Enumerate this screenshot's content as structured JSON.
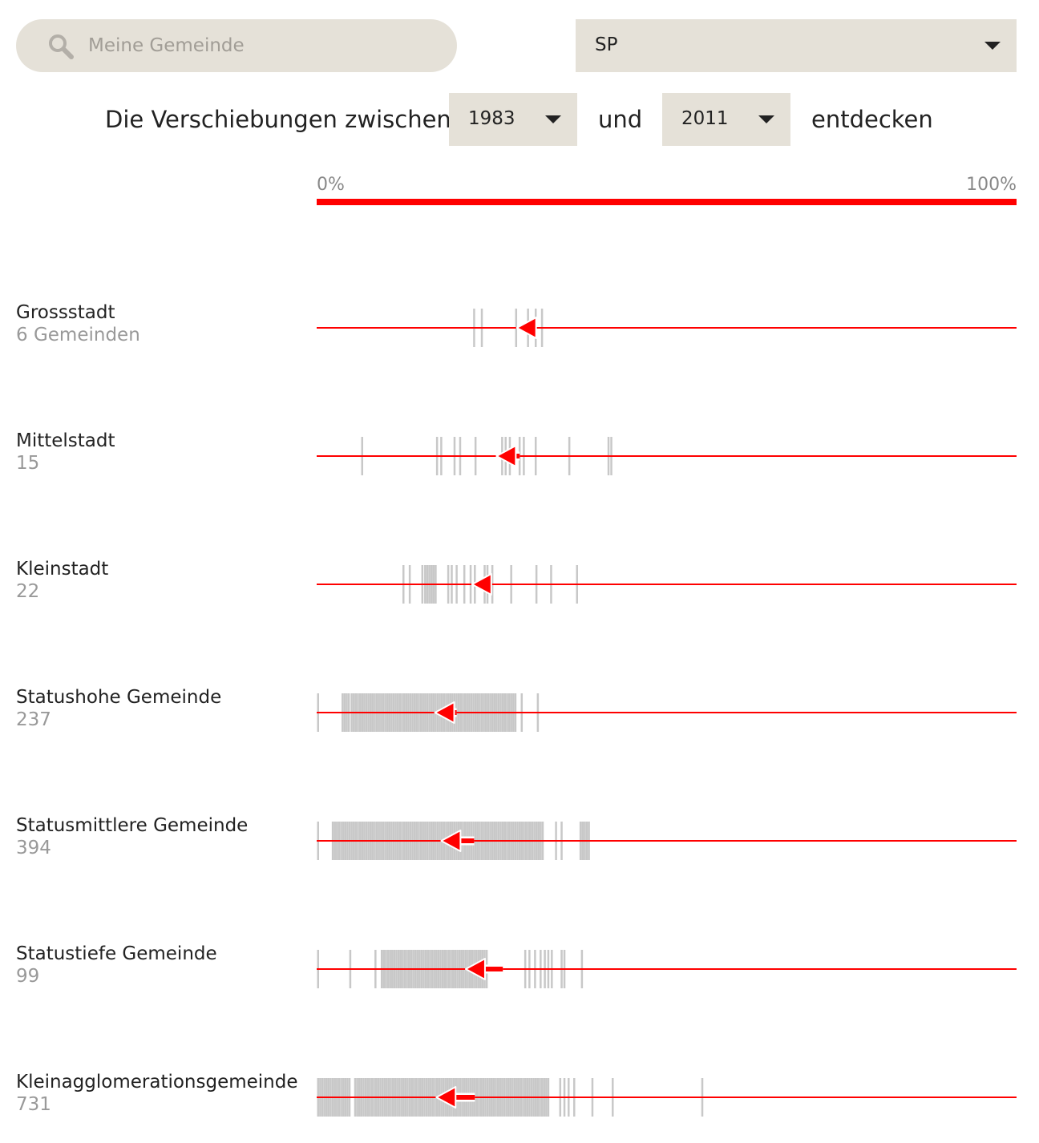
{
  "search": {
    "placeholder": "Meine Gemeinde",
    "icon": "search-icon"
  },
  "party_select": {
    "value": "SP",
    "icon": "chevron-down-icon"
  },
  "sentence": {
    "prefix": "Die Verschiebungen zwischen",
    "year_from": "1983",
    "middle": "und",
    "year_to": "2011",
    "suffix": "entdecken"
  },
  "scale": {
    "min_label": "0%",
    "max_label": "100%",
    "color": "#ff0000"
  },
  "colors": {
    "accent": "#ff0000",
    "tick": "#c8c8c8",
    "control_bg": "#e5e1d8"
  },
  "chart_data": {
    "type": "strip",
    "x_range": [
      0,
      100
    ],
    "unit": "%",
    "rows": [
      {
        "title": "Grossstadt",
        "count_label": "6 Gemeinden",
        "from": 30.6,
        "to": 28.6,
        "values": [
          22.5,
          23.6,
          28.5,
          30.2,
          31.3,
          32.2
        ]
      },
      {
        "title": "Mittelstadt",
        "count_label": "15",
        "from": 29.0,
        "to": 25.7,
        "values": [
          6.5,
          17.2,
          17.8,
          19.7,
          20.5,
          22.7,
          26.5,
          27.0,
          27.6,
          29.0,
          29.6,
          31.3,
          36.1,
          41.7,
          42.1
        ]
      },
      {
        "title": "Kleinstadt",
        "count_label": "22",
        "from": 24.8,
        "to": 22.2,
        "values": [
          12.4,
          13.3,
          15.1,
          15.5,
          15.8,
          16.1,
          16.4,
          16.7,
          17.0,
          18.8,
          19.3,
          20.0,
          21.1,
          22.0,
          22.6,
          24.0,
          24.4,
          25.1,
          27.8,
          31.4,
          33.5,
          37.2
        ]
      },
      {
        "title": "Statushohe Gemeinde",
        "count_label": "237",
        "from": 20.0,
        "to": 16.9,
        "values": [
          0.2,
          3.7,
          4.0,
          4.3,
          4.6,
          5.0,
          5.3,
          5.6,
          5.9,
          6.2,
          6.5,
          6.8,
          7.1,
          7.4,
          7.7,
          8.0,
          8.3,
          8.6,
          8.9,
          9.2,
          9.5,
          9.8,
          10.1,
          10.4,
          10.7,
          11.0,
          11.3,
          11.6,
          11.9,
          12.2,
          12.5,
          12.8,
          13.1,
          13.4,
          13.7,
          14.0,
          14.3,
          14.6,
          14.9,
          15.2,
          15.5,
          15.8,
          16.1,
          16.4,
          16.7,
          17.0,
          17.3,
          17.6,
          17.9,
          18.2,
          18.5,
          18.8,
          19.1,
          19.4,
          19.7,
          20.0,
          20.3,
          20.6,
          20.9,
          21.2,
          21.5,
          21.8,
          22.1,
          22.4,
          22.7,
          23.0,
          23.3,
          23.6,
          23.9,
          24.2,
          24.5,
          24.8,
          25.1,
          25.4,
          25.7,
          26.0,
          26.3,
          26.6,
          26.9,
          27.2,
          27.5,
          27.8,
          28.1,
          28.4,
          29.3,
          31.6
        ]
      },
      {
        "title": "Statusmittlere Gemeinde",
        "count_label": "394",
        "from": 22.5,
        "to": 17.8,
        "values": [
          0.2,
          2.3,
          2.6,
          2.9,
          3.2,
          3.5,
          3.8,
          4.1,
          4.4,
          4.7,
          5.0,
          5.3,
          5.6,
          5.9,
          6.2,
          6.5,
          6.8,
          7.1,
          7.4,
          7.7,
          8.0,
          8.3,
          8.6,
          8.9,
          9.2,
          9.5,
          9.8,
          10.1,
          10.4,
          10.7,
          11.0,
          11.3,
          11.6,
          11.9,
          12.2,
          12.5,
          12.8,
          13.1,
          13.4,
          13.7,
          14.0,
          14.3,
          14.6,
          14.9,
          15.2,
          15.5,
          15.8,
          16.1,
          16.4,
          16.7,
          17.0,
          17.3,
          17.6,
          17.9,
          18.2,
          18.5,
          18.8,
          19.1,
          19.4,
          19.7,
          20.0,
          20.3,
          20.6,
          20.9,
          21.2,
          21.5,
          21.8,
          22.1,
          22.4,
          22.7,
          23.0,
          23.3,
          23.6,
          23.9,
          24.2,
          24.5,
          24.8,
          25.1,
          25.4,
          25.7,
          26.0,
          26.3,
          26.6,
          26.9,
          27.2,
          27.5,
          27.8,
          28.1,
          28.4,
          28.7,
          29.0,
          29.3,
          29.6,
          29.9,
          30.2,
          30.5,
          30.8,
          31.1,
          31.4,
          31.7,
          32.0,
          32.3,
          34.2,
          35.0,
          37.7,
          38.0,
          38.3,
          38.6,
          38.9
        ]
      },
      {
        "title": "Statustiefe Gemeinde",
        "count_label": "99",
        "from": 26.6,
        "to": 21.3,
        "values": [
          0.2,
          4.8,
          8.4,
          9.3,
          9.6,
          9.9,
          10.2,
          10.5,
          10.8,
          11.1,
          11.4,
          11.7,
          12.0,
          12.3,
          12.6,
          12.9,
          13.2,
          13.5,
          13.8,
          14.1,
          14.4,
          14.7,
          15.0,
          15.3,
          15.6,
          15.9,
          16.2,
          16.5,
          16.8,
          17.1,
          17.4,
          17.7,
          18.0,
          18.3,
          18.6,
          18.9,
          19.2,
          19.5,
          19.8,
          20.1,
          20.4,
          20.7,
          21.0,
          21.3,
          21.6,
          21.9,
          22.2,
          22.5,
          22.8,
          23.1,
          23.4,
          23.7,
          24.0,
          24.3,
          29.8,
          30.4,
          31.2,
          32.0,
          32.6,
          33.1,
          33.6,
          35.0,
          35.4,
          37.9
        ]
      },
      {
        "title": "Kleinagglomerationsgemeinde",
        "count_label": "731",
        "from": 22.6,
        "to": 17.1,
        "values": [
          0.2,
          0.5,
          0.8,
          1.1,
          1.4,
          1.7,
          2.0,
          2.3,
          2.6,
          2.9,
          3.2,
          3.5,
          3.8,
          4.1,
          4.4,
          4.7,
          5.5,
          5.8,
          6.1,
          6.4,
          6.7,
          7.0,
          7.3,
          7.6,
          7.9,
          8.2,
          8.5,
          8.8,
          9.1,
          9.4,
          9.7,
          10.0,
          10.3,
          10.6,
          10.9,
          11.2,
          11.5,
          11.8,
          12.1,
          12.4,
          12.7,
          13.0,
          13.3,
          13.6,
          13.9,
          14.2,
          14.5,
          14.8,
          15.1,
          15.4,
          15.7,
          16.0,
          16.3,
          16.6,
          16.9,
          17.2,
          17.5,
          17.8,
          18.1,
          18.4,
          18.7,
          19.0,
          19.3,
          19.6,
          19.9,
          20.2,
          20.5,
          20.8,
          21.1,
          21.4,
          21.7,
          22.0,
          22.3,
          22.6,
          22.9,
          23.2,
          23.5,
          23.8,
          24.1,
          24.4,
          24.7,
          25.0,
          25.3,
          25.6,
          25.9,
          26.2,
          26.5,
          26.8,
          27.1,
          27.4,
          27.7,
          28.0,
          28.3,
          28.6,
          28.9,
          29.2,
          29.5,
          29.8,
          30.1,
          30.4,
          30.7,
          31.0,
          31.3,
          31.6,
          31.9,
          32.2,
          32.5,
          32.8,
          33.1,
          34.8,
          35.4,
          36.0,
          36.8,
          39.4,
          42.3,
          55.1
        ]
      }
    ]
  }
}
